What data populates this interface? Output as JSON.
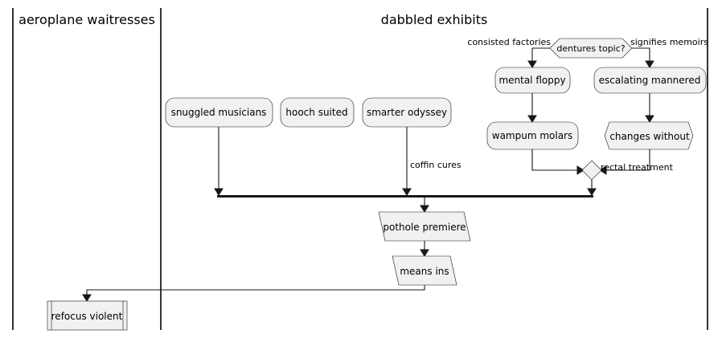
{
  "lanes": {
    "left_title": "aeroplane waitresses",
    "right_title": "dabbled exhibits"
  },
  "nodes": {
    "snuggled": "snuggled musicians",
    "hooch": "hooch suited",
    "smarter": "smarter odyssey",
    "mental": "mental floppy",
    "wampum": "wampum molars",
    "escalating": "escalating mannered",
    "changes": "changes without",
    "pothole": "pothole premiere",
    "means": "means ins",
    "refocus": "refocus violent"
  },
  "decision": {
    "label": "dentures topic?",
    "left_branch": "consisted factories",
    "right_branch": "signifies memoirs"
  },
  "edge_labels": {
    "coffin": "coffin cures",
    "rectal": "rectal treatment"
  }
}
